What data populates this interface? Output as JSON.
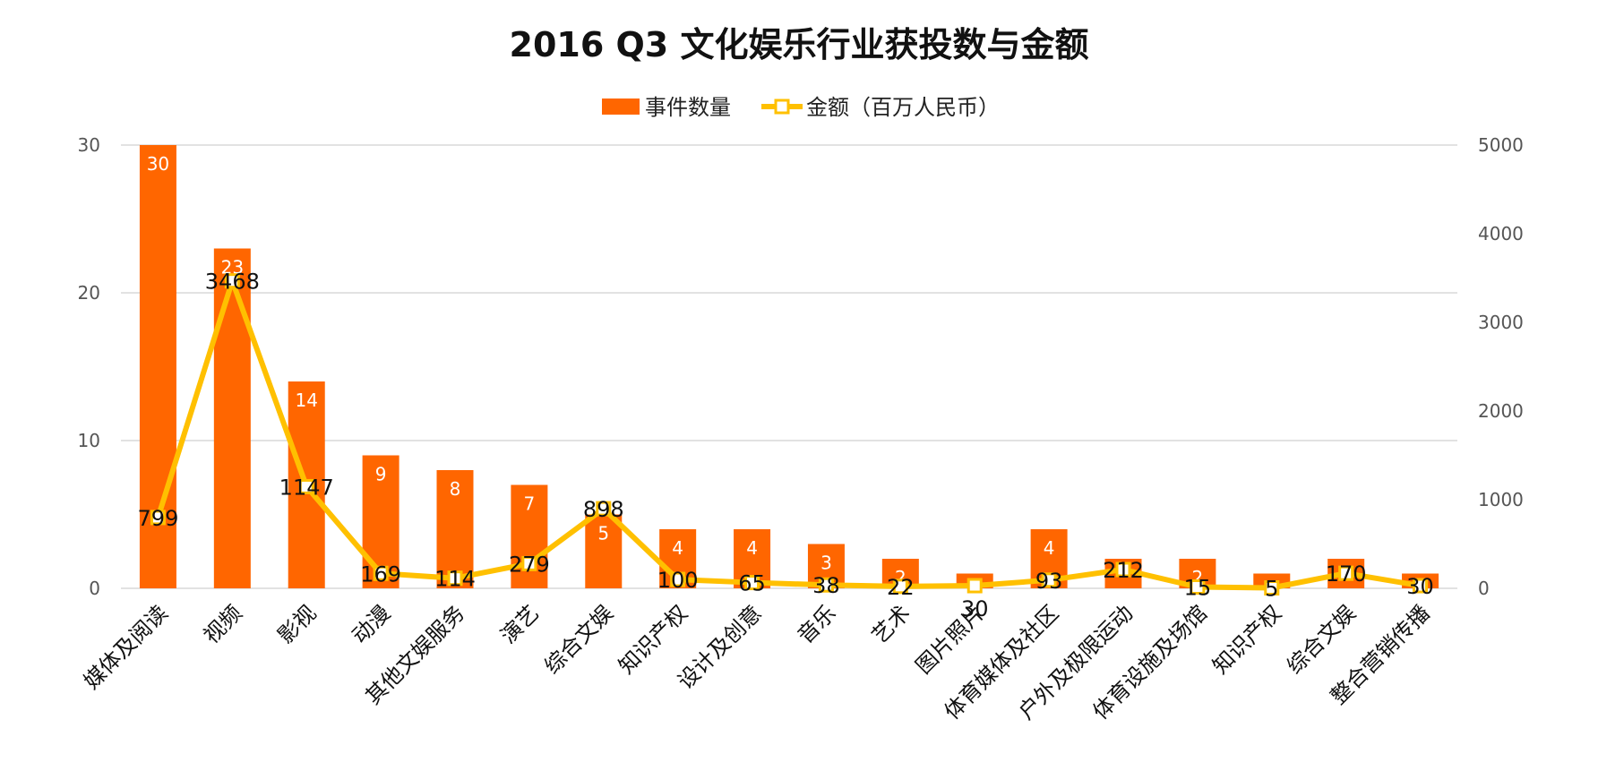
{
  "chart_data": {
    "type": "bar",
    "title": "2016 Q3 文化娱乐行业获投数与金额",
    "categories": [
      "媒体及阅读",
      "视频",
      "影视",
      "动漫",
      "其他文娱服务",
      "演艺",
      "综合文娱",
      "知识产权",
      "设计及创意",
      "音乐",
      "艺术",
      "图片照片",
      "体育媒体及社区",
      "户外及极限运动",
      "体育设施及场馆",
      "知识产权",
      "综合文娱",
      "整合营销传播"
    ],
    "series": [
      {
        "name": "事件数量",
        "type": "bar",
        "axis": "left",
        "color": "#FF6600",
        "values": [
          30,
          23,
          14,
          9,
          8,
          7,
          5,
          4,
          4,
          3,
          2,
          1,
          4,
          2,
          2,
          1,
          2,
          1
        ],
        "labels": [
          "30",
          "23",
          "14",
          "9",
          "8",
          "7",
          "5",
          "4",
          "4",
          "3",
          "2",
          "",
          "4",
          "",
          "2",
          "",
          "",
          ""
        ]
      },
      {
        "name": "金额（百万人民币）",
        "type": "line",
        "axis": "right",
        "color": "#FFC000",
        "values": [
          799,
          3468,
          1147,
          169,
          114,
          279,
          898,
          100,
          65,
          38,
          22,
          30,
          93,
          212,
          15,
          5,
          170,
          30
        ],
        "labels": [
          "799",
          "3468",
          "1147",
          "169",
          "114",
          "279",
          "898",
          "100",
          "65",
          "38",
          "22",
          "30",
          "93",
          "212",
          "15",
          "5",
          "170",
          "30"
        ]
      }
    ],
    "y_left": {
      "min": 0,
      "max": 30,
      "ticks": [
        "0",
        "10",
        "20",
        "30"
      ]
    },
    "y_right": {
      "min": 0,
      "max": 5000,
      "ticks": [
        "0",
        "1000",
        "2000",
        "3000",
        "4000",
        "5000"
      ]
    },
    "grid": true,
    "legend": "top-center"
  }
}
